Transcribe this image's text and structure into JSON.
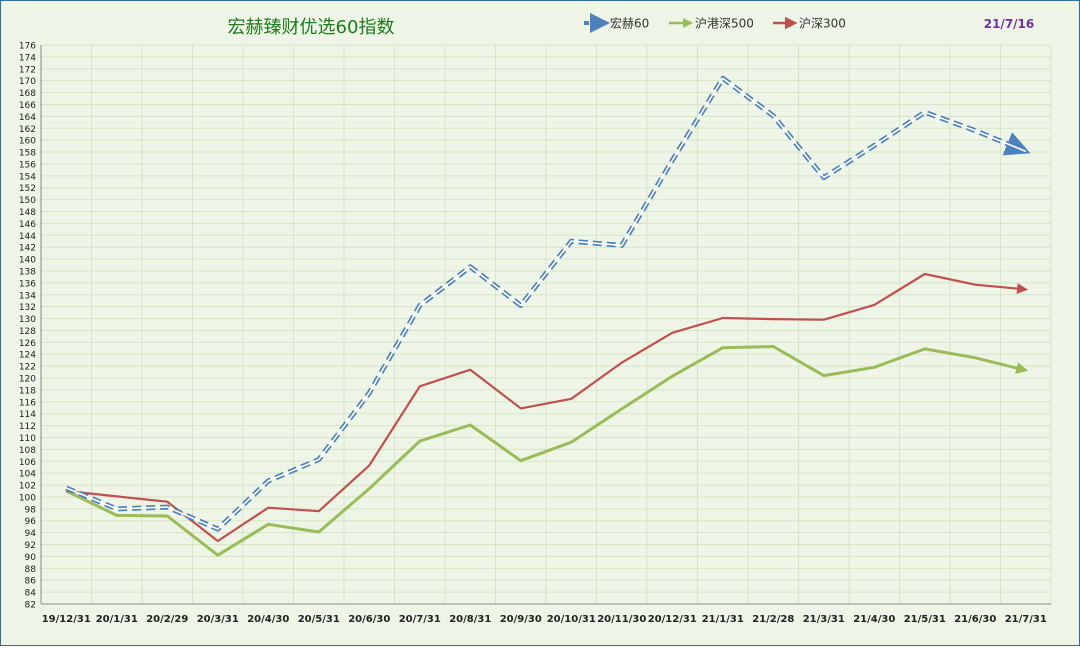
{
  "chart_data": {
    "type": "line",
    "title": "宏赫臻财优选60指数",
    "date_label": "21/7/16",
    "xlabel": "",
    "ylabel": "",
    "ylim": [
      82,
      176
    ],
    "ytick_step": 2,
    "grid": true,
    "legend_position": "top",
    "categories": [
      "19/12/31",
      "20/1/31",
      "20/2/29",
      "20/3/31",
      "20/4/30",
      "20/5/31",
      "20/6/30",
      "20/7/31",
      "20/8/31",
      "20/9/30",
      "20/10/31",
      "20/11/30",
      "20/12/31",
      "21/1/31",
      "21/2/28",
      "21/3/31",
      "21/4/30",
      "21/5/31",
      "21/6/30",
      "21/7/31"
    ],
    "series": [
      {
        "name": "宏赫60",
        "color": "#4f81bd",
        "style": "dashed-double",
        "values": [
          101.5,
          98.0,
          98.3,
          94.6,
          102.7,
          106.3,
          117.5,
          132.2,
          138.7,
          132.2,
          143.0,
          142.3,
          156.6,
          170.4,
          164.1,
          153.7,
          159.1,
          164.7,
          161.6,
          158.1
        ]
      },
      {
        "name": "沪港深500",
        "color": "#9bbb59",
        "style": "solid",
        "values": [
          101.0,
          96.9,
          96.8,
          90.2,
          95.4,
          94.1,
          101.4,
          109.4,
          112.1,
          106.1,
          109.2,
          114.8,
          120.3,
          125.1,
          125.3,
          120.4,
          121.8,
          124.9,
          123.4,
          121.3
        ]
      },
      {
        "name": "沪深300",
        "color": "#c0504d",
        "style": "solid",
        "values": [
          101.0,
          100.1,
          99.2,
          92.6,
          98.2,
          97.6,
          105.3,
          118.6,
          121.4,
          114.9,
          116.5,
          122.6,
          127.6,
          130.1,
          129.9,
          129.8,
          132.3,
          137.5,
          135.7,
          134.9
        ]
      }
    ]
  }
}
